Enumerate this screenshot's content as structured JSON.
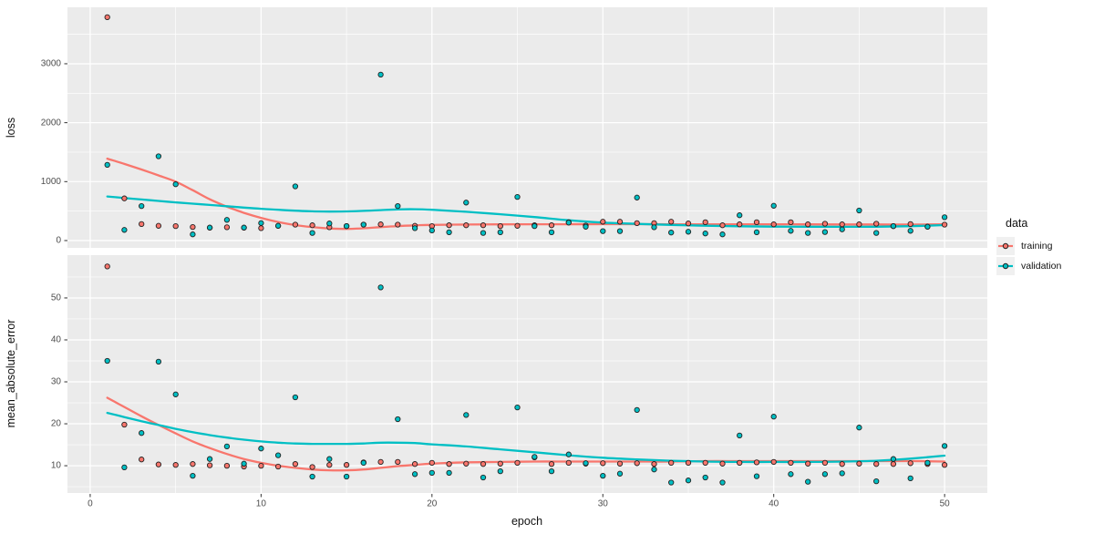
{
  "figure": {
    "background": "#FFFFFF",
    "panel_background": "#EBEBEB",
    "grid_color": "#FFFFFF",
    "tick_color": "#333333",
    "tick_label_color": "#4D4D4D",
    "point_outline": "#222222"
  },
  "legend": {
    "title": "data",
    "key_background": "#F0F0F0",
    "entries": [
      {
        "label": "training",
        "color": "#F8766D"
      },
      {
        "label": "validation",
        "color": "#00BFC4"
      }
    ]
  },
  "x_axis": {
    "title": "epoch",
    "ticks": [
      0,
      10,
      20,
      30,
      40,
      50
    ],
    "minor_ticks": [
      5,
      15,
      25,
      35,
      45
    ],
    "range": [
      -1.33,
      52.5
    ]
  },
  "chart_data": [
    {
      "type": "scatter",
      "facet": "loss",
      "ylabel": "loss",
      "xlabel": "epoch",
      "yticks": [
        0,
        1000,
        2000,
        3000
      ],
      "yminor": [
        500,
        1500,
        2500,
        3500
      ],
      "ylim": [
        -124,
        3958
      ],
      "x": [
        1,
        2,
        3,
        4,
        5,
        6,
        7,
        8,
        9,
        10,
        11,
        12,
        13,
        14,
        15,
        16,
        17,
        18,
        19,
        20,
        21,
        22,
        23,
        24,
        25,
        26,
        27,
        28,
        29,
        30,
        31,
        32,
        33,
        34,
        35,
        36,
        37,
        38,
        39,
        40,
        41,
        42,
        43,
        44,
        45,
        46,
        47,
        48,
        49,
        50
      ],
      "smooth_x": [
        1,
        2,
        3,
        4,
        5,
        6,
        7,
        8,
        9,
        10,
        11,
        12,
        13,
        14,
        15,
        16,
        17,
        18,
        19,
        20,
        22,
        24,
        26,
        28,
        30,
        32,
        34,
        36,
        38,
        40,
        42,
        44,
        46,
        48,
        50
      ],
      "series": [
        {
          "name": "training",
          "color": "#F8766D",
          "values": [
            3790,
            715,
            280,
            250,
            245,
            230,
            220,
            225,
            220,
            210,
            250,
            270,
            260,
            225,
            245,
            270,
            275,
            270,
            250,
            245,
            260,
            260,
            260,
            245,
            250,
            260,
            260,
            310,
            255,
            320,
            320,
            295,
            295,
            320,
            290,
            310,
            260,
            275,
            310,
            275,
            310,
            275,
            285,
            275,
            275,
            285,
            245,
            280,
            235,
            270
          ],
          "smooth_y": [
            1390,
            1300,
            1205,
            1105,
            1000,
            855,
            700,
            575,
            470,
            385,
            315,
            262,
            228,
            205,
            198,
            208,
            228,
            246,
            258,
            266,
            272,
            275,
            276,
            277,
            278,
            278,
            277,
            277,
            276,
            276,
            275,
            274,
            273,
            272,
            276
          ]
        },
        {
          "name": "validation",
          "color": "#00BFC4",
          "values": [
            1285,
            180,
            585,
            1430,
            955,
            105,
            220,
            350,
            220,
            297,
            250,
            920,
            130,
            290,
            245,
            270,
            2815,
            585,
            210,
            172,
            140,
            645,
            130,
            140,
            740,
            245,
            140,
            305,
            235,
            160,
            160,
            730,
            225,
            135,
            150,
            120,
            105,
            430,
            140,
            590,
            165,
            130,
            145,
            190,
            510,
            130,
            245,
            165,
            235,
            395
          ],
          "smooth_y": [
            748,
            722,
            697,
            672,
            648,
            626,
            604,
            582,
            560,
            540,
            522,
            507,
            496,
            492,
            494,
            503,
            516,
            529,
            532,
            522,
            488,
            446,
            398,
            345,
            305,
            283,
            265,
            251,
            242,
            237,
            234,
            233,
            235,
            244,
            262
          ]
        }
      ]
    },
    {
      "type": "scatter",
      "facet": "mean_absolute_error",
      "ylabel": "mean_absolute_error",
      "xlabel": "epoch",
      "yticks": [
        10,
        20,
        30,
        40,
        50
      ],
      "yminor": [
        5,
        15,
        25,
        35,
        45,
        55
      ],
      "ylim": [
        3.5,
        60.2
      ],
      "x": [
        1,
        2,
        3,
        4,
        5,
        6,
        7,
        8,
        9,
        10,
        11,
        12,
        13,
        14,
        15,
        16,
        17,
        18,
        19,
        20,
        21,
        22,
        23,
        24,
        25,
        26,
        27,
        28,
        29,
        30,
        31,
        32,
        33,
        34,
        35,
        36,
        37,
        38,
        39,
        40,
        41,
        42,
        43,
        44,
        45,
        46,
        47,
        48,
        49,
        50
      ],
      "smooth_x": [
        1,
        2,
        3,
        4,
        5,
        6,
        7,
        8,
        9,
        10,
        11,
        12,
        13,
        14,
        15,
        16,
        17,
        18,
        19,
        20,
        22,
        24,
        26,
        28,
        30,
        32,
        34,
        36,
        38,
        40,
        42,
        44,
        46,
        48,
        50
      ],
      "series": [
        {
          "name": "training",
          "color": "#F8766D",
          "values": [
            57.5,
            19.8,
            11.5,
            10.3,
            10.2,
            10.4,
            10.1,
            10.0,
            9.8,
            10.0,
            9.8,
            10.4,
            9.7,
            10.2,
            10.2,
            10.8,
            10.9,
            10.9,
            10.4,
            10.7,
            10.4,
            10.5,
            10.4,
            10.5,
            10.7,
            12.0,
            10.4,
            10.7,
            10.5,
            10.6,
            10.5,
            10.6,
            10.4,
            10.7,
            10.7,
            10.7,
            10.5,
            10.7,
            10.8,
            10.9,
            10.7,
            10.5,
            10.7,
            10.4,
            10.5,
            10.4,
            10.4,
            10.6,
            10.4,
            10.2
          ],
          "smooth_y": [
            26.2,
            24.0,
            21.8,
            19.7,
            17.7,
            15.8,
            14.2,
            12.8,
            11.6,
            10.7,
            10.0,
            9.5,
            9.1,
            8.9,
            8.9,
            9.1,
            9.5,
            9.9,
            10.2,
            10.5,
            10.8,
            10.9,
            11.0,
            11.0,
            11.0,
            11.0,
            11.0,
            11.1,
            11.1,
            11.1,
            11.1,
            11.1,
            11.1,
            11.1,
            11.0
          ]
        },
        {
          "name": "validation",
          "color": "#00BFC4",
          "values": [
            35.0,
            9.6,
            17.8,
            34.8,
            27.0,
            7.6,
            11.6,
            14.6,
            10.5,
            14.1,
            12.5,
            26.3,
            7.4,
            11.6,
            7.4,
            10.7,
            52.5,
            21.1,
            8.0,
            8.3,
            8.3,
            22.1,
            7.2,
            8.7,
            23.9,
            12.1,
            8.7,
            12.7,
            10.6,
            7.6,
            8.1,
            23.3,
            9.1,
            6.0,
            6.5,
            7.2,
            6.0,
            17.2,
            7.5,
            21.7,
            8.0,
            6.2,
            8.0,
            8.2,
            19.1,
            6.3,
            11.6,
            7.0,
            10.7,
            14.7
          ],
          "smooth_y": [
            22.6,
            21.6,
            20.6,
            19.7,
            18.8,
            18.0,
            17.3,
            16.7,
            16.2,
            15.8,
            15.5,
            15.3,
            15.2,
            15.2,
            15.2,
            15.3,
            15.5,
            15.5,
            15.4,
            15.1,
            14.6,
            13.9,
            13.2,
            12.5,
            11.9,
            11.5,
            11.2,
            11.0,
            10.9,
            10.9,
            10.9,
            11.0,
            11.2,
            11.7,
            12.4
          ]
        }
      ]
    }
  ]
}
